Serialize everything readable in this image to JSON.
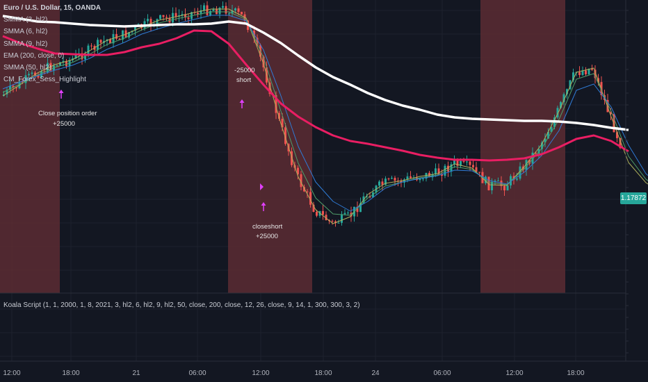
{
  "legend": {
    "title": "Euro / U.S. Dollar, 15, OANDA",
    "indicators": [
      "SMMA (3, hl2)",
      "SMMA (6, hl2)",
      "SMMA (9, hl2)",
      "EMA (200, close, 0)",
      "SMMA (50, hl2)",
      "CM_Forex_Sess_Highlight"
    ]
  },
  "script_label": "Koala Script (1, 1, 2000, 1, 8, 2021, 3, hl2, 6, hl2, 9, hl2, 50, close, 200, close, 12, 26, close, 9, 14, 1, 300, 300, 3, 2)",
  "price_tag": "1.17872",
  "colors": {
    "background": "#131722",
    "session_highlight": "#5c2b32",
    "up_candle": "#26a69a",
    "down_candle": "#ef5350",
    "ema200": "#ffffff",
    "smma50": "#e91e63",
    "smma3": "#aeb15c",
    "smma6": "#4f9e6a",
    "smma9": "#2f7bd6",
    "signal_marker": "#e040fb"
  },
  "chart_data": {
    "type": "line",
    "x_ticks": [
      "12:00",
      "18:00",
      "21",
      "06:00",
      "12:00",
      "18:00",
      "24",
      "06:00",
      "12:00",
      "18:00"
    ],
    "annotations": [
      "Close position order",
      "+25000",
      "-25000",
      "short",
      "closeshort",
      "+25000"
    ],
    "series": [
      {
        "name": "EMA (200, close, 0)",
        "color": "#ffffff",
        "y": [
          23,
          27,
          31,
          32,
          34,
          36,
          37,
          38,
          37,
          36,
          35,
          35,
          34,
          31,
          34,
          47,
          62,
          80,
          97,
          111,
          122,
          134,
          144,
          152,
          158,
          165,
          169,
          171,
          172,
          173,
          174,
          174,
          175,
          177,
          180,
          184,
          187
        ]
      },
      {
        "name": "SMMA (50, hl2)",
        "color": "#e91e63",
        "y": [
          52,
          62,
          70,
          77,
          78,
          79,
          79,
          75,
          68,
          63,
          55,
          44,
          45,
          63,
          93,
          122,
          149,
          168,
          183,
          195,
          203,
          207,
          212,
          217,
          223,
          227,
          230,
          230,
          231,
          230,
          228,
          222,
          212,
          200,
          195,
          203,
          218
        ]
      },
      {
        "name": "SMMA (9, hl2)",
        "color": "#2f7bd6",
        "y": [
          128,
          118,
          109,
          101,
          94,
          84,
          71,
          61,
          49,
          41,
          34,
          28,
          22,
          22,
          30,
          72,
          138,
          211,
          262,
          290,
          304,
          290,
          271,
          262,
          257,
          253,
          245,
          246,
          260,
          265,
          248,
          224,
          188,
          130,
          121,
          154,
          209,
          250,
          272
        ]
      },
      {
        "name": "SMMA (6, hl2)",
        "color": "#4f9e6a",
        "y": [
          133,
          121,
          108,
          97,
          90,
          78,
          64,
          55,
          43,
          33,
          27,
          22,
          17,
          17,
          28,
          83,
          160,
          235,
          285,
          308,
          310,
          285,
          268,
          262,
          256,
          252,
          240,
          244,
          263,
          266,
          243,
          214,
          172,
          114,
          106,
          160,
          225,
          258,
          276
        ]
      },
      {
        "name": "SMMA (3, hl2)",
        "color": "#aeb15c",
        "y": [
          138,
          122,
          105,
          93,
          86,
          73,
          58,
          50,
          39,
          29,
          24,
          18,
          13,
          13,
          26,
          92,
          178,
          255,
          302,
          322,
          312,
          280,
          264,
          260,
          254,
          250,
          236,
          242,
          266,
          267,
          240,
          208,
          160,
          104,
          98,
          168,
          234,
          263,
          279
        ]
      }
    ]
  }
}
